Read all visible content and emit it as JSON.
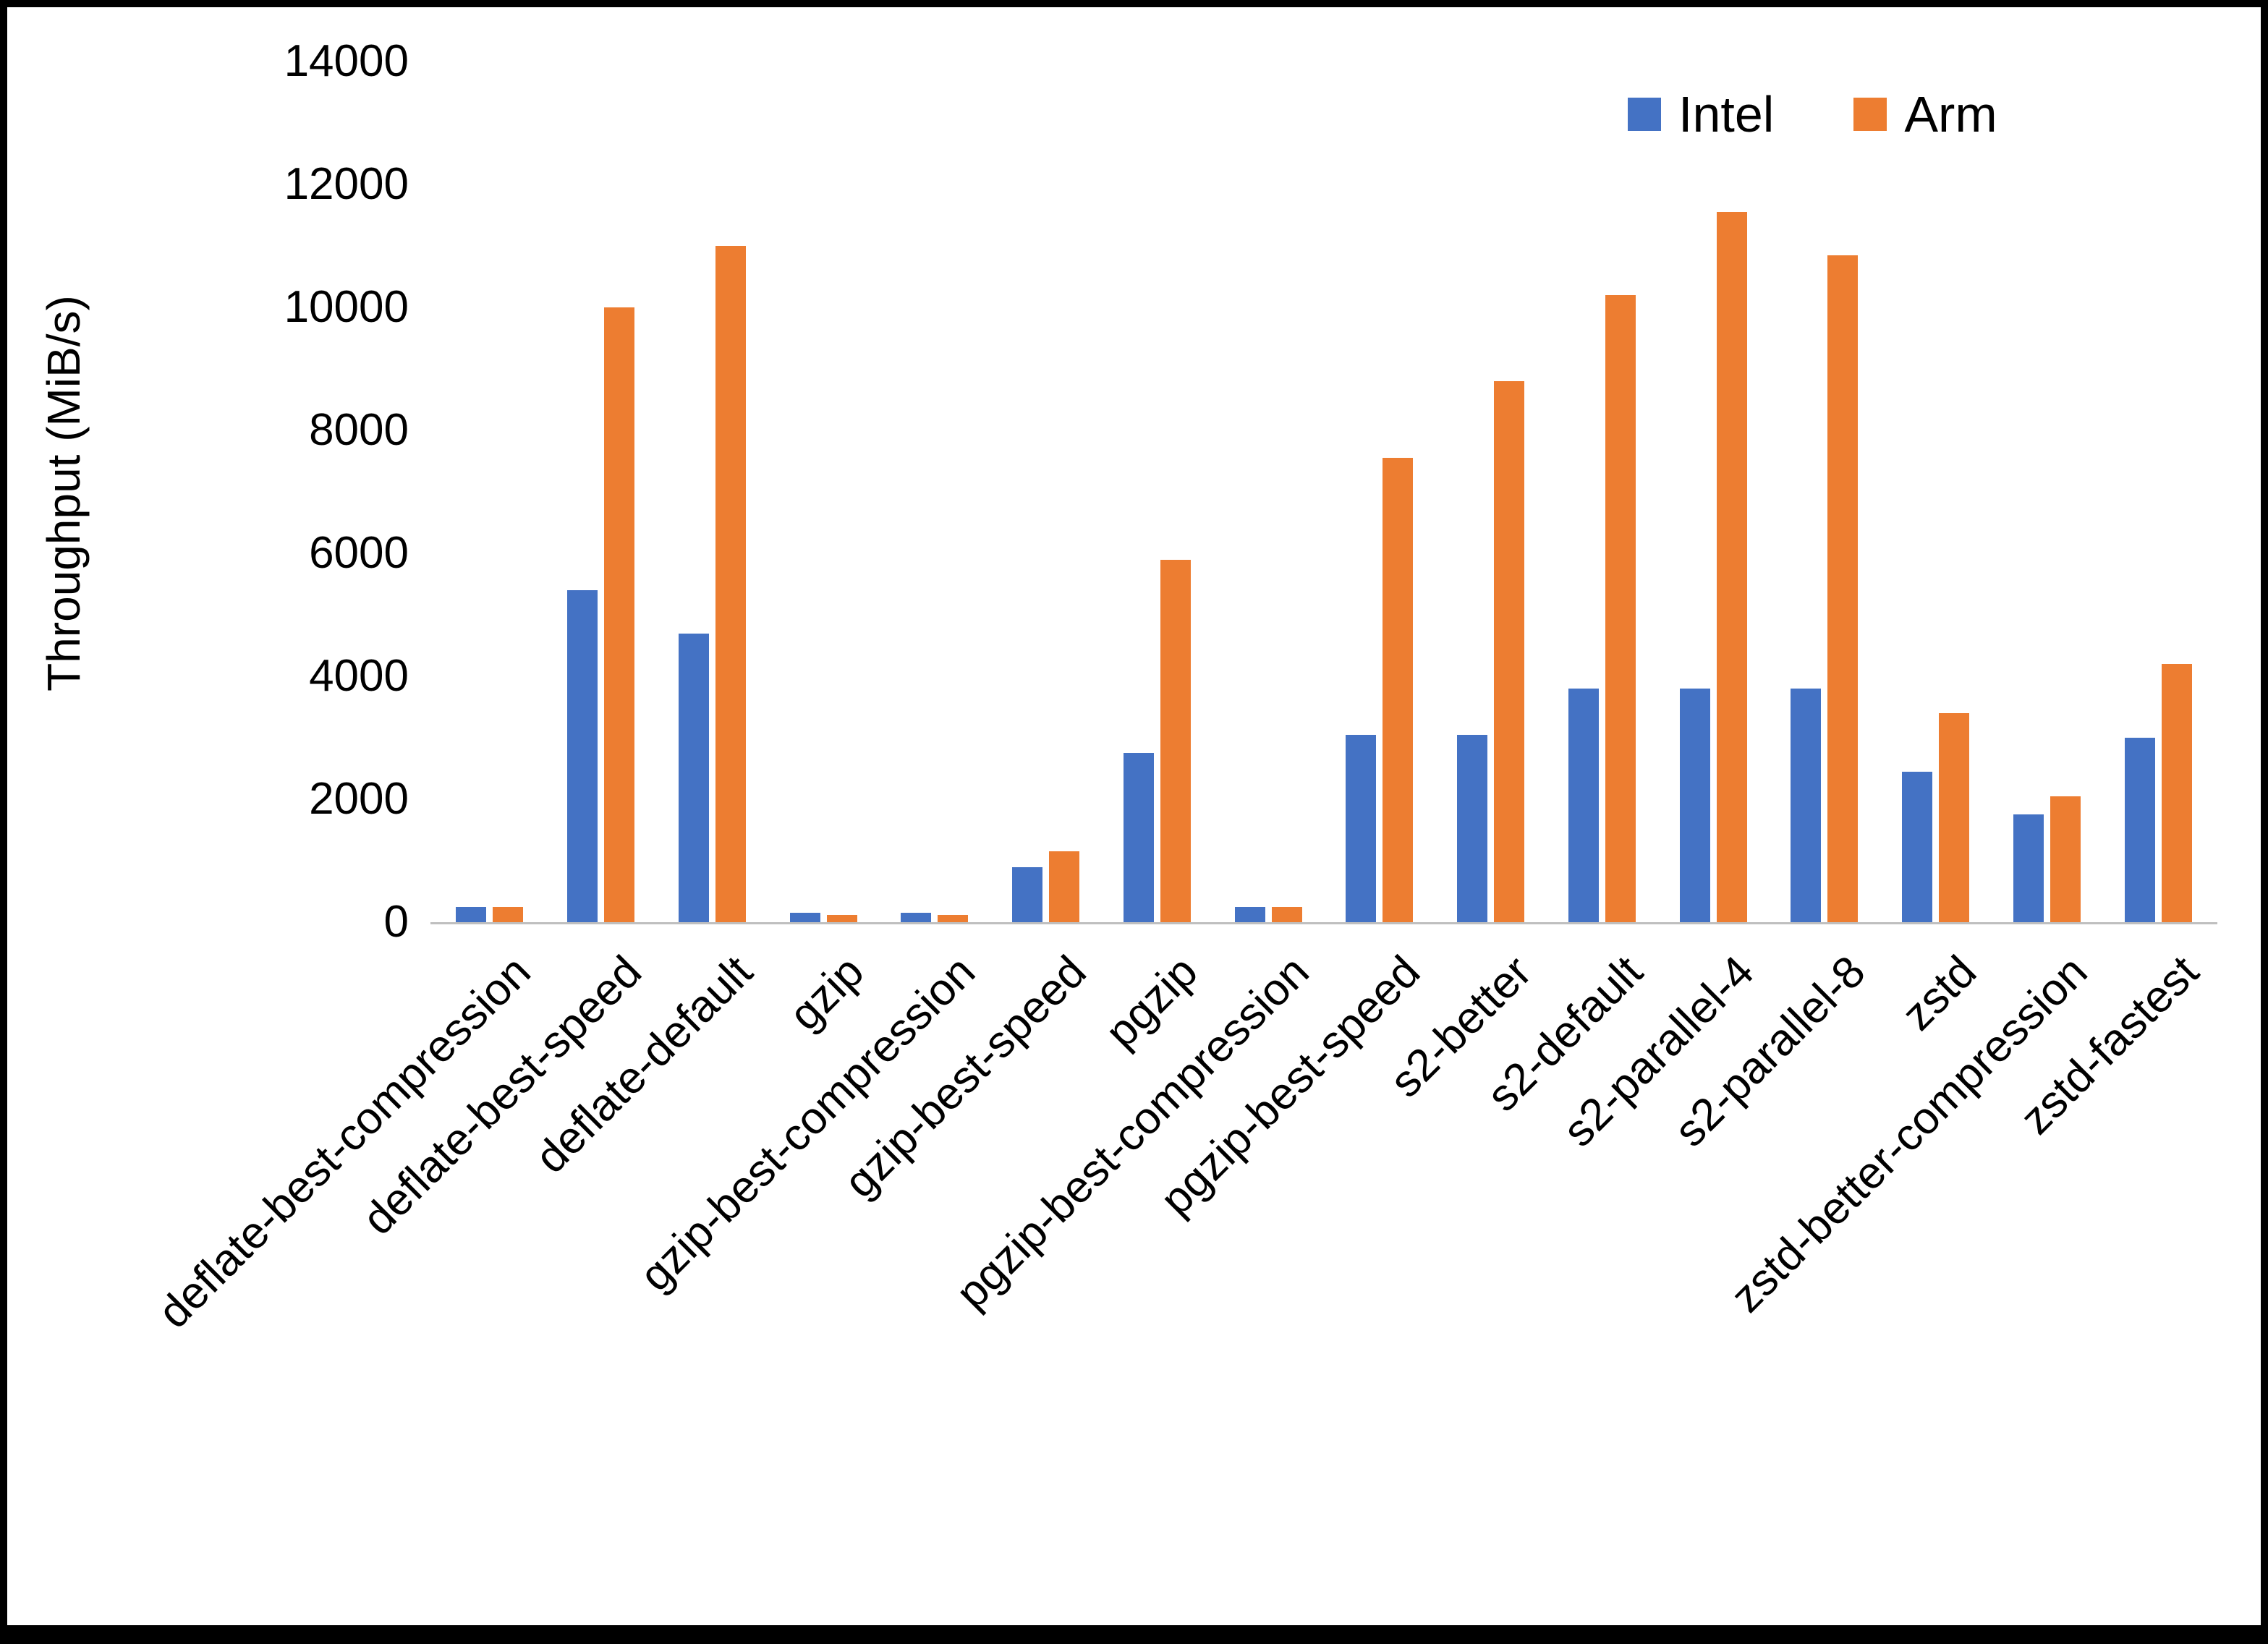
{
  "chart_data": {
    "type": "bar",
    "title": "",
    "xlabel": "",
    "ylabel": "Throughput (MiB/s)",
    "ylim": [
      0,
      14000
    ],
    "ytick_step": 2000,
    "grid": false,
    "legend_position": "top-right",
    "categories": [
      "deflate-best-compression",
      "deflate-best-speed",
      "deflate-default",
      "gzip",
      "gzip-best-compression",
      "gzip-best-speed",
      "pgzip",
      "pgzip-best-compression",
      "pgzip-best-speed",
      "s2-better",
      "s2-default",
      "s2-parallel-4",
      "s2-parallel-8",
      "zstd",
      "zstd-better-compression",
      "zstd-fastest"
    ],
    "series": [
      {
        "name": "Intel",
        "color": "#4472C4",
        "values": [
          250,
          5400,
          4700,
          150,
          150,
          900,
          2750,
          250,
          3050,
          3050,
          3800,
          3800,
          3800,
          2450,
          1750,
          3000
        ]
      },
      {
        "name": "Arm",
        "color": "#ED7D31",
        "values": [
          250,
          10000,
          11000,
          120,
          120,
          1150,
          5900,
          250,
          7550,
          8800,
          10200,
          11550,
          10850,
          3400,
          2050,
          4200
        ]
      }
    ]
  }
}
